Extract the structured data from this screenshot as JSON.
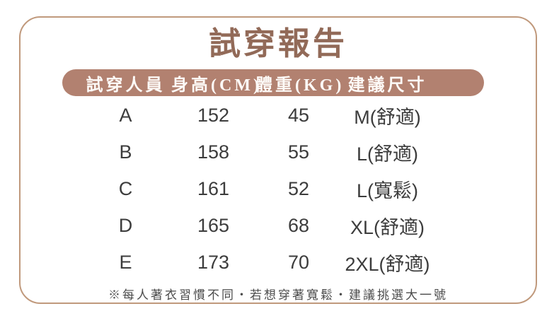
{
  "chart_data": {
    "type": "table",
    "title": "試穿報告",
    "columns": [
      "試穿人員",
      "身高(CM)",
      "體重(KG)",
      "建議尺寸"
    ],
    "rows": [
      [
        "A",
        "152",
        "45",
        "M(舒適)"
      ],
      [
        "B",
        "158",
        "55",
        "L(舒適)"
      ],
      [
        "C",
        "161",
        "52",
        "L(寬鬆)"
      ],
      [
        "D",
        "165",
        "68",
        "XL(舒適)"
      ],
      [
        "E",
        "173",
        "70",
        "2XL(舒適)"
      ]
    ],
    "note": "※每人著衣習慣不同‧若想穿著寬鬆‧建議挑選大一號",
    "layout": {
      "grid": false,
      "legend_position": "none",
      "header_style": "rounded-pill"
    }
  },
  "colors": {
    "accent": "#b28170",
    "card_border": "#c0997c",
    "title_text": "#926a58",
    "header_text": "#fdfaf7",
    "body_text": "#3c3c3c",
    "note_text": "#4b4b4b",
    "background": "#ffffff"
  }
}
